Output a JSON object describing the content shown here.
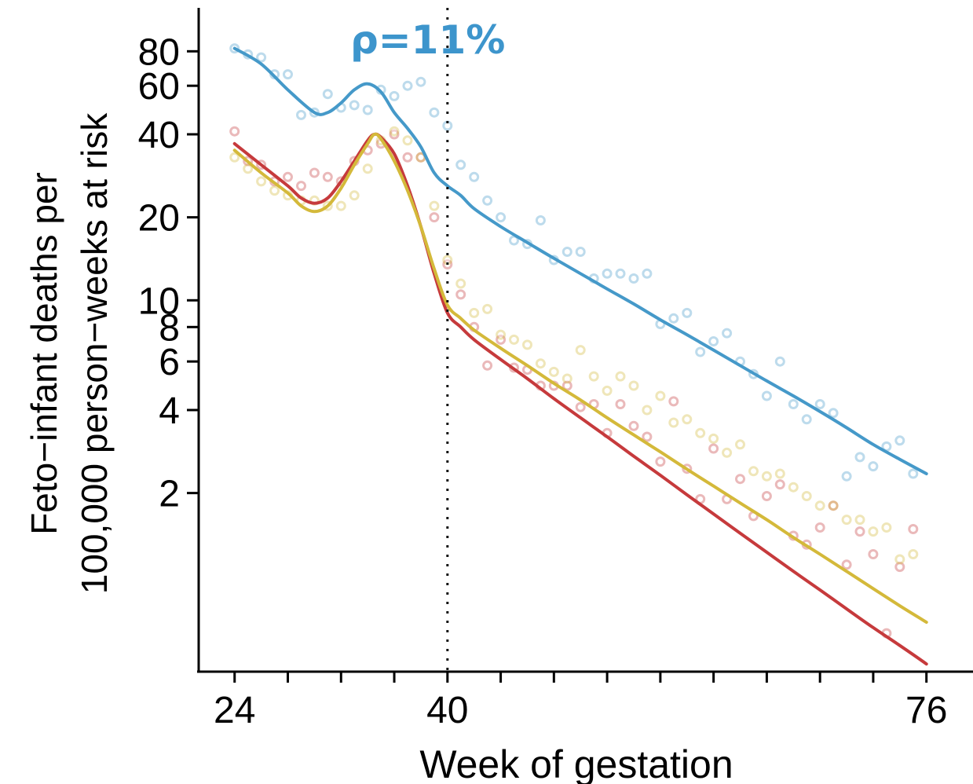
{
  "chart_data": {
    "type": "scatter",
    "xlabel": "Week of gestation",
    "ylabel_line1": "Feto−infant deaths per",
    "ylabel_line2": "100,000 person−weeks at risk",
    "annotation": "ρ=11%",
    "x_scale": "linear",
    "y_scale": "log",
    "xlim": [
      21.3,
      79.5
    ],
    "ylim": [
      0.45,
      115
    ],
    "x_ticks": [
      24,
      40,
      76
    ],
    "x_minor_ticks": [
      28,
      32,
      36,
      44,
      48,
      52,
      56,
      60,
      64,
      68,
      72
    ],
    "y_ticks": [
      2,
      4,
      6,
      8,
      10,
      20,
      40,
      60,
      80
    ],
    "vline_x": 40,
    "grid": false,
    "legend": "none",
    "colors": {
      "blue": "#4599c9",
      "red": "#c63a3c",
      "yellow": "#d4b93a"
    },
    "series": [
      {
        "color": "#4599c9",
        "points": [
          [
            24,
            82
          ],
          [
            25,
            78
          ],
          [
            26,
            76
          ],
          [
            27,
            66
          ],
          [
            28,
            66
          ],
          [
            29,
            47
          ],
          [
            30,
            48
          ],
          [
            31,
            56
          ],
          [
            32,
            50
          ],
          [
            33,
            51
          ],
          [
            34,
            49
          ],
          [
            35,
            58
          ],
          [
            36,
            55
          ],
          [
            37,
            60
          ],
          [
            38,
            62
          ],
          [
            39,
            48
          ],
          [
            40,
            43
          ],
          [
            41,
            31
          ],
          [
            42,
            28
          ],
          [
            43,
            23
          ],
          [
            44,
            20
          ],
          [
            45,
            16.5
          ],
          [
            46,
            16
          ],
          [
            47,
            19.5
          ],
          [
            48,
            14
          ],
          [
            49,
            15
          ],
          [
            50,
            15
          ],
          [
            51,
            12
          ],
          [
            52,
            12.5
          ],
          [
            53,
            12.5
          ],
          [
            54,
            12
          ],
          [
            55,
            12.5
          ],
          [
            56,
            8.2
          ],
          [
            57,
            8.6
          ],
          [
            58,
            9
          ],
          [
            59,
            6.5
          ],
          [
            60,
            7.1
          ],
          [
            61,
            7.6
          ],
          [
            62,
            6
          ],
          [
            63,
            5.4
          ],
          [
            64,
            4.5
          ],
          [
            65,
            6
          ],
          [
            66,
            4.2
          ],
          [
            67,
            3.7
          ],
          [
            68,
            4.2
          ],
          [
            69,
            3.9
          ],
          [
            70,
            2.3
          ],
          [
            71,
            2.7
          ],
          [
            72,
            2.5
          ],
          [
            73,
            2.95
          ],
          [
            74,
            3.1
          ],
          [
            75,
            2.35
          ]
        ],
        "trend": [
          [
            24,
            82
          ],
          [
            26,
            72
          ],
          [
            28,
            58
          ],
          [
            30,
            48
          ],
          [
            31,
            48
          ],
          [
            32,
            52
          ],
          [
            33,
            58
          ],
          [
            34,
            61
          ],
          [
            35,
            57
          ],
          [
            36,
            48
          ],
          [
            37,
            42
          ],
          [
            38,
            36
          ],
          [
            39,
            29
          ],
          [
            40,
            26
          ],
          [
            41,
            24
          ],
          [
            42,
            21.5
          ],
          [
            44,
            18.5
          ],
          [
            46,
            16.2
          ],
          [
            48,
            14.2
          ],
          [
            50,
            12.5
          ],
          [
            52,
            11
          ],
          [
            54,
            9.7
          ],
          [
            56,
            8.5
          ],
          [
            58,
            7.5
          ],
          [
            60,
            6.6
          ],
          [
            62,
            5.8
          ],
          [
            64,
            5.1
          ],
          [
            66,
            4.5
          ],
          [
            68,
            3.95
          ],
          [
            70,
            3.45
          ],
          [
            72,
            3.0
          ],
          [
            74,
            2.65
          ],
          [
            76,
            2.35
          ]
        ]
      },
      {
        "color": "#c63a3c",
        "points": [
          [
            24,
            41
          ],
          [
            25,
            32
          ],
          [
            26,
            31
          ],
          [
            27,
            27
          ],
          [
            28,
            28
          ],
          [
            29,
            26
          ],
          [
            30,
            29
          ],
          [
            31,
            28
          ],
          [
            32,
            27
          ],
          [
            33,
            32
          ],
          [
            34,
            35
          ],
          [
            35,
            37
          ],
          [
            36,
            40
          ],
          [
            37,
            33
          ],
          [
            38,
            33
          ],
          [
            39,
            20
          ],
          [
            40,
            13.5
          ],
          [
            41,
            10.5
          ],
          [
            42,
            8
          ],
          [
            43,
            5.8
          ],
          [
            44,
            7.2
          ],
          [
            45,
            5.7
          ],
          [
            46,
            5.6
          ],
          [
            47,
            4.9
          ],
          [
            48,
            4.9
          ],
          [
            49,
            4.9
          ],
          [
            50,
            4.1
          ],
          [
            51,
            4.2
          ],
          [
            52,
            3.3
          ],
          [
            53,
            4.2
          ],
          [
            54,
            3.5
          ],
          [
            55,
            3.2
          ],
          [
            56,
            2.6
          ],
          [
            57,
            4.3
          ],
          [
            58,
            2.45
          ],
          [
            59,
            1.9
          ],
          [
            60,
            2.9
          ],
          [
            61,
            1.9
          ],
          [
            62,
            2.25
          ],
          [
            63,
            1.65
          ],
          [
            64,
            1.95
          ],
          [
            65,
            2.15
          ],
          [
            66,
            1.4
          ],
          [
            67,
            1.3
          ],
          [
            68,
            1.5
          ],
          [
            69,
            1.8
          ],
          [
            70,
            1.1
          ],
          [
            71,
            1.45
          ],
          [
            72,
            1.2
          ],
          [
            73,
            0.62
          ],
          [
            74,
            1.08
          ],
          [
            75,
            1.48
          ]
        ],
        "trend": [
          [
            24,
            37
          ],
          [
            26,
            31
          ],
          [
            28,
            26
          ],
          [
            29,
            23.5
          ],
          [
            30,
            22.5
          ],
          [
            31,
            23.5
          ],
          [
            32,
            27
          ],
          [
            33,
            32
          ],
          [
            34,
            38
          ],
          [
            34.5,
            40
          ],
          [
            35,
            39
          ],
          [
            36,
            34
          ],
          [
            37,
            26
          ],
          [
            38,
            18.5
          ],
          [
            39,
            12.5
          ],
          [
            40,
            9
          ],
          [
            41,
            8
          ],
          [
            42,
            7.2
          ],
          [
            44,
            6.1
          ],
          [
            46,
            5.2
          ],
          [
            48,
            4.4
          ],
          [
            50,
            3.75
          ],
          [
            52,
            3.2
          ],
          [
            54,
            2.72
          ],
          [
            56,
            2.32
          ],
          [
            58,
            1.97
          ],
          [
            60,
            1.68
          ],
          [
            62,
            1.43
          ],
          [
            64,
            1.22
          ],
          [
            66,
            1.04
          ],
          [
            68,
            0.89
          ],
          [
            70,
            0.76
          ],
          [
            72,
            0.65
          ],
          [
            74,
            0.56
          ],
          [
            76,
            0.48
          ]
        ]
      },
      {
        "color": "#d4b93a",
        "points": [
          [
            24,
            33
          ],
          [
            25,
            30
          ],
          [
            26,
            27
          ],
          [
            27,
            25
          ],
          [
            28,
            24
          ],
          [
            29,
            23
          ],
          [
            30,
            23
          ],
          [
            31,
            22
          ],
          [
            32,
            22
          ],
          [
            33,
            24
          ],
          [
            34,
            30
          ],
          [
            35,
            38
          ],
          [
            36,
            41
          ],
          [
            37,
            38
          ],
          [
            38,
            33
          ],
          [
            39,
            22
          ],
          [
            40,
            14
          ],
          [
            41,
            11.5
          ],
          [
            42,
            9
          ],
          [
            43,
            9.3
          ],
          [
            44,
            7.5
          ],
          [
            45,
            7.2
          ],
          [
            46,
            6.9
          ],
          [
            47,
            5.9
          ],
          [
            48,
            5.5
          ],
          [
            49,
            5.2
          ],
          [
            50,
            6.6
          ],
          [
            51,
            5.3
          ],
          [
            52,
            4.7
          ],
          [
            53,
            5.3
          ],
          [
            54,
            4.9
          ],
          [
            55,
            4.0
          ],
          [
            56,
            4.5
          ],
          [
            57,
            3.6
          ],
          [
            58,
            3.7
          ],
          [
            59,
            3.3
          ],
          [
            60,
            3.15
          ],
          [
            61,
            2.8
          ],
          [
            62,
            3.0
          ],
          [
            63,
            2.4
          ],
          [
            64,
            2.3
          ],
          [
            65,
            2.35
          ],
          [
            66,
            2.1
          ],
          [
            67,
            1.95
          ],
          [
            68,
            1.8
          ],
          [
            69,
            1.8
          ],
          [
            70,
            1.6
          ],
          [
            71,
            1.6
          ],
          [
            72,
            1.45
          ],
          [
            73,
            1.5
          ],
          [
            74,
            1.15
          ],
          [
            75,
            1.2
          ]
        ],
        "trend": [
          [
            24,
            35
          ],
          [
            26,
            29
          ],
          [
            28,
            24.5
          ],
          [
            29,
            22
          ],
          [
            30,
            21
          ],
          [
            31,
            22
          ],
          [
            32,
            25.5
          ],
          [
            33,
            31
          ],
          [
            34,
            37
          ],
          [
            34.5,
            40
          ],
          [
            35,
            38.5
          ],
          [
            36,
            32
          ],
          [
            37,
            25
          ],
          [
            38,
            18.5
          ],
          [
            39,
            13
          ],
          [
            40,
            9.6
          ],
          [
            41,
            8.6
          ],
          [
            42,
            7.8
          ],
          [
            44,
            6.7
          ],
          [
            46,
            5.8
          ],
          [
            48,
            5.0
          ],
          [
            50,
            4.35
          ],
          [
            52,
            3.75
          ],
          [
            54,
            3.25
          ],
          [
            56,
            2.82
          ],
          [
            58,
            2.44
          ],
          [
            60,
            2.12
          ],
          [
            62,
            1.84
          ],
          [
            64,
            1.6
          ],
          [
            66,
            1.38
          ],
          [
            68,
            1.2
          ],
          [
            70,
            1.04
          ],
          [
            72,
            0.9
          ],
          [
            74,
            0.78
          ],
          [
            76,
            0.68
          ]
        ]
      }
    ]
  }
}
